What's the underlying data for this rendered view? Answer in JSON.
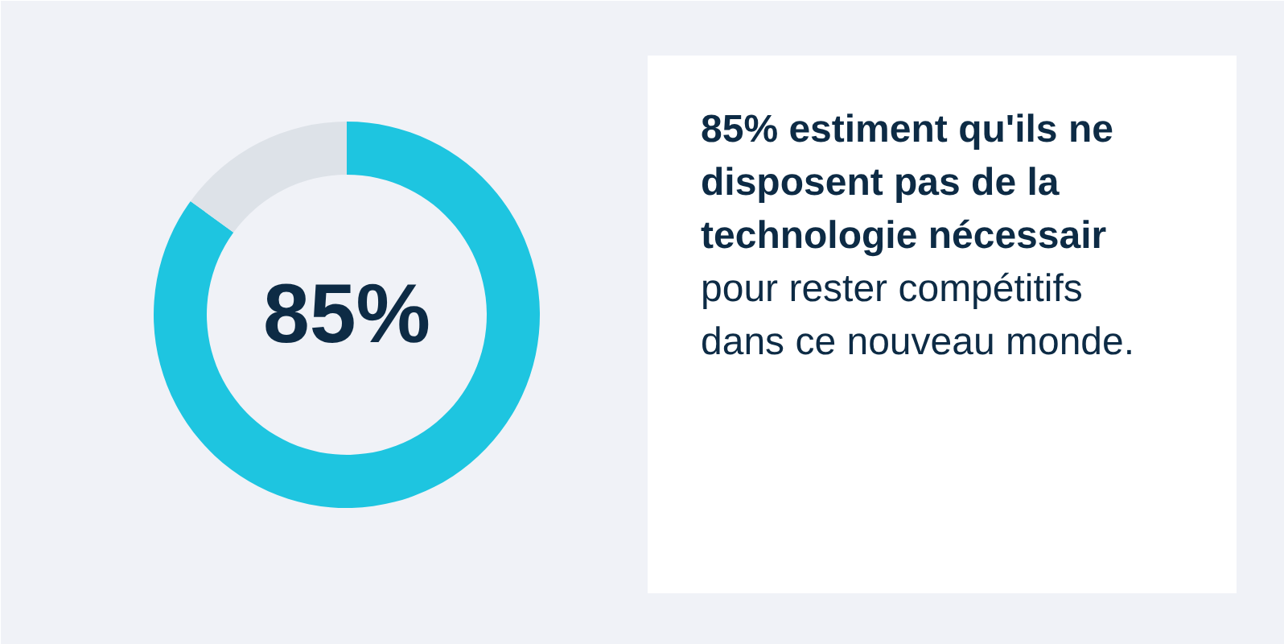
{
  "chart_data": {
    "type": "donut",
    "title": "85% estiment qu'ils ne disposent pas de la technologie nécessair",
    "subtitle": "pour rester compétitifs dans ce nouveau monde.",
    "categories": [
      null,
      null
    ],
    "values": [
      85,
      15
    ],
    "colors": [
      "#1ec5e0",
      "#dde2e8"
    ],
    "annotations": [
      "85%"
    ]
  }
}
